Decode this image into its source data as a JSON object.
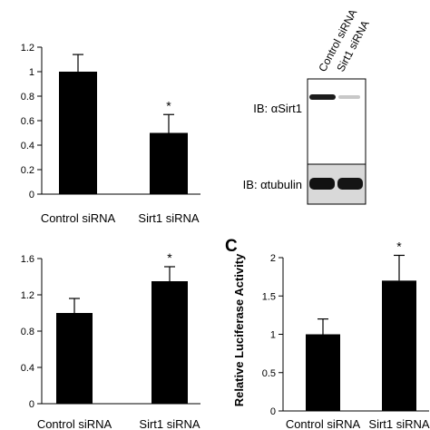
{
  "chart_data": [
    {
      "type": "bar",
      "categories": [
        "Control siRNA",
        "Sirt1 siRNA"
      ],
      "values": [
        1.0,
        0.5
      ],
      "errors": [
        0.14,
        0.15
      ],
      "significance": [
        "",
        "*"
      ],
      "ylim": [
        0,
        1.2
      ],
      "ytick_labels": [
        "0",
        "0.2",
        "0.4",
        "0.6",
        "0.8",
        "1",
        "1.2"
      ]
    },
    {
      "type": "bar",
      "categories": [
        "Control siRNA",
        "Sirt1 siRNA"
      ],
      "values": [
        1.0,
        1.35
      ],
      "errors": [
        0.16,
        0.16
      ],
      "significance": [
        "",
        "*"
      ],
      "ylim": [
        0,
        1.6
      ],
      "ytick_labels": [
        "0",
        "0.4",
        "0.8",
        "1.2",
        "1.6"
      ]
    },
    {
      "type": "bar",
      "panel_label": "C",
      "ylabel": "Relative Luciferase Activity",
      "categories": [
        "Control siRNA",
        "Sirt1 siRNA"
      ],
      "values": [
        1.0,
        1.7
      ],
      "errors": [
        0.2,
        0.33
      ],
      "significance": [
        "",
        "*"
      ],
      "ylim": [
        0,
        2
      ],
      "ytick_labels": [
        "0",
        "0.5",
        "1",
        "1.5",
        "2"
      ]
    }
  ],
  "blot": {
    "lanes": [
      "Control siRNA",
      "Sirt1 siRNA"
    ],
    "labels": [
      "IB: αSirt1",
      "IB: αtubulin"
    ]
  }
}
